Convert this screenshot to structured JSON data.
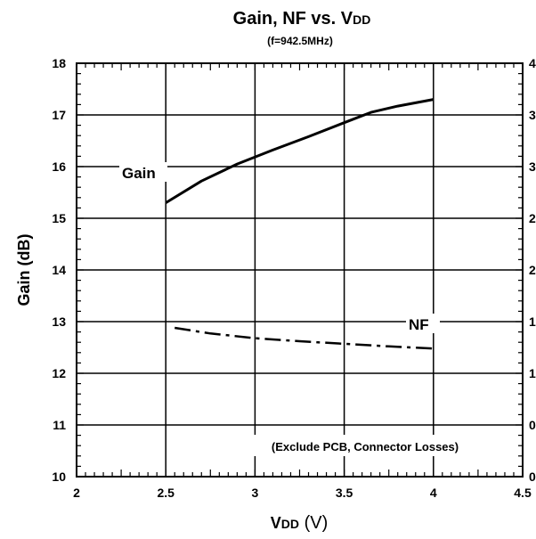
{
  "chart_data": {
    "type": "line",
    "title_main": "Gain, NF vs. V",
    "title_sub": "DD",
    "subtitle": "(f=942.5MHz)",
    "xlabel_main": "V",
    "xlabel_sub": "DD",
    "xlabel_unit": " (V)",
    "ylabel": "Gain (dB)",
    "xlim": [
      2,
      4.5
    ],
    "ylim": [
      10,
      18
    ],
    "x_ticks": [
      "2",
      "2.5",
      "3",
      "3.5",
      "4",
      "4.5"
    ],
    "y_ticks": [
      "10",
      "11",
      "12",
      "13",
      "14",
      "15",
      "16",
      "17",
      "18"
    ],
    "y2_ticks_partial": [
      "0",
      "0",
      "1",
      "1",
      "2",
      "2",
      "3",
      "3",
      "4"
    ],
    "grid": true,
    "annotation": "(Exclude PCB, Connector Losses)",
    "series": [
      {
        "name": "Gain",
        "style": "solid",
        "x": [
          2.5,
          2.7,
          2.9,
          3.1,
          3.3,
          3.5,
          3.65,
          3.8,
          4.0
        ],
        "y": [
          15.3,
          15.72,
          16.05,
          16.32,
          16.58,
          16.85,
          17.05,
          17.17,
          17.3
        ]
      },
      {
        "name": "NF",
        "style": "dashdot",
        "x": [
          2.55,
          2.75,
          3.0,
          3.25,
          3.5,
          3.75,
          4.0
        ],
        "y": [
          12.88,
          12.77,
          12.68,
          12.62,
          12.57,
          12.52,
          12.48
        ]
      }
    ]
  }
}
